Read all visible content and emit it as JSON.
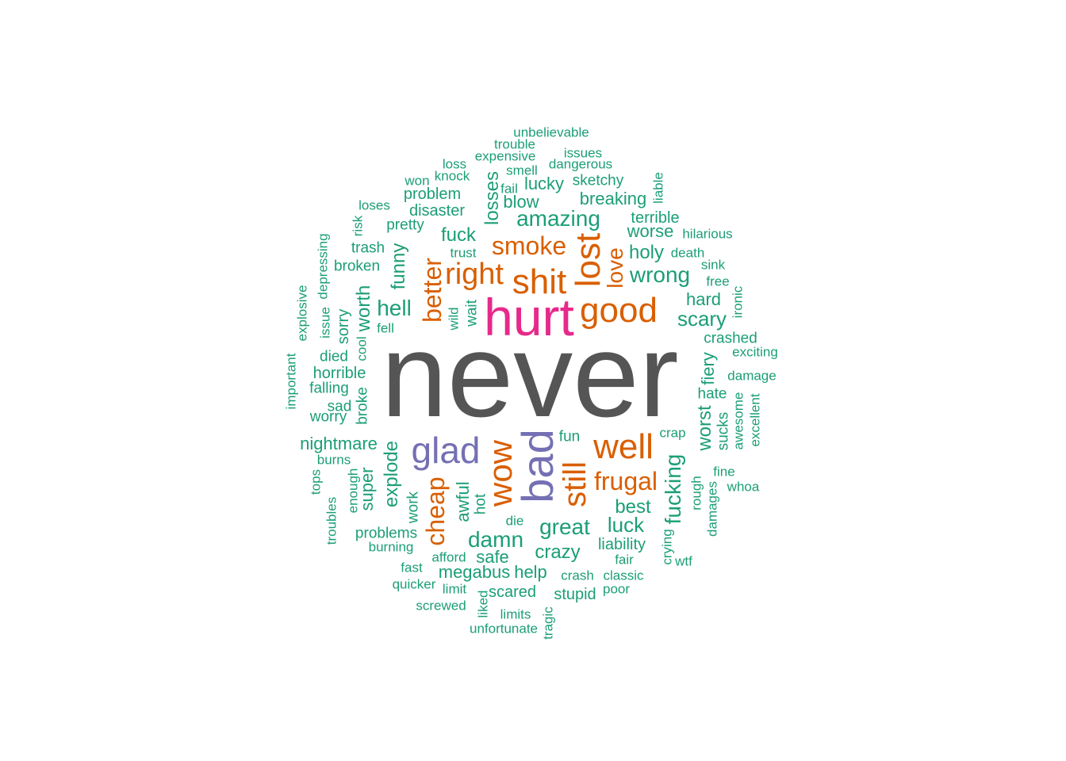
{
  "colors": {
    "green": "#1b9e77",
    "orange": "#d95f02",
    "purple": "#7570b3",
    "magenta": "#e7298a",
    "gray": "#555555"
  },
  "words": [
    {
      "text": "never",
      "color": "gray"
    },
    {
      "text": "hurt",
      "color": "magenta"
    },
    {
      "text": "bad",
      "color": "purple"
    },
    {
      "text": "glad",
      "color": "purple"
    },
    {
      "text": "shit",
      "color": "orange"
    },
    {
      "text": "good",
      "color": "orange"
    },
    {
      "text": "lost",
      "color": "orange"
    },
    {
      "text": "right",
      "color": "orange"
    },
    {
      "text": "well",
      "color": "orange"
    },
    {
      "text": "wow",
      "color": "orange"
    },
    {
      "text": "still",
      "color": "orange"
    },
    {
      "text": "smoke",
      "color": "orange"
    },
    {
      "text": "better",
      "color": "orange"
    },
    {
      "text": "cheap",
      "color": "orange"
    },
    {
      "text": "frugal",
      "color": "orange"
    },
    {
      "text": "love",
      "color": "orange"
    },
    {
      "text": "unbelievable",
      "color": "green"
    },
    {
      "text": "trouble",
      "color": "green"
    },
    {
      "text": "issues",
      "color": "green"
    },
    {
      "text": "expensive",
      "color": "green"
    },
    {
      "text": "dangerous",
      "color": "green"
    },
    {
      "text": "loss",
      "color": "green"
    },
    {
      "text": "smell",
      "color": "green"
    },
    {
      "text": "sketchy",
      "color": "green"
    },
    {
      "text": "won",
      "color": "green"
    },
    {
      "text": "knock",
      "color": "green"
    },
    {
      "text": "lucky",
      "color": "green"
    },
    {
      "text": "fail",
      "color": "green"
    },
    {
      "text": "liable",
      "color": "green"
    },
    {
      "text": "problem",
      "color": "green"
    },
    {
      "text": "losses",
      "color": "green"
    },
    {
      "text": "blow",
      "color": "green"
    },
    {
      "text": "breaking",
      "color": "green"
    },
    {
      "text": "loses",
      "color": "green"
    },
    {
      "text": "disaster",
      "color": "green"
    },
    {
      "text": "amazing",
      "color": "green"
    },
    {
      "text": "terrible",
      "color": "green"
    },
    {
      "text": "risk",
      "color": "green"
    },
    {
      "text": "pretty",
      "color": "green"
    },
    {
      "text": "worse",
      "color": "green"
    },
    {
      "text": "hilarious",
      "color": "green"
    },
    {
      "text": "fuck",
      "color": "green"
    },
    {
      "text": "trash",
      "color": "green"
    },
    {
      "text": "trust",
      "color": "green"
    },
    {
      "text": "holy",
      "color": "green"
    },
    {
      "text": "death",
      "color": "green"
    },
    {
      "text": "broken",
      "color": "green"
    },
    {
      "text": "depressing",
      "color": "green"
    },
    {
      "text": "funny",
      "color": "green"
    },
    {
      "text": "sink",
      "color": "green"
    },
    {
      "text": "wrong",
      "color": "green"
    },
    {
      "text": "free",
      "color": "green"
    },
    {
      "text": "explosive",
      "color": "green"
    },
    {
      "text": "hard",
      "color": "green"
    },
    {
      "text": "ironic",
      "color": "green"
    },
    {
      "text": "hell",
      "color": "green"
    },
    {
      "text": "worth",
      "color": "green"
    },
    {
      "text": "issue",
      "color": "green"
    },
    {
      "text": "sorry",
      "color": "green"
    },
    {
      "text": "wild",
      "color": "green"
    },
    {
      "text": "wait",
      "color": "green"
    },
    {
      "text": "scary",
      "color": "green"
    },
    {
      "text": "fell",
      "color": "green"
    },
    {
      "text": "crashed",
      "color": "green"
    },
    {
      "text": "cool",
      "color": "green"
    },
    {
      "text": "died",
      "color": "green"
    },
    {
      "text": "exciting",
      "color": "green"
    },
    {
      "text": "important",
      "color": "green"
    },
    {
      "text": "horrible",
      "color": "green"
    },
    {
      "text": "damage",
      "color": "green"
    },
    {
      "text": "fiery",
      "color": "green"
    },
    {
      "text": "falling",
      "color": "green"
    },
    {
      "text": "broke",
      "color": "green"
    },
    {
      "text": "hate",
      "color": "green"
    },
    {
      "text": "sad",
      "color": "green"
    },
    {
      "text": "awesome",
      "color": "green"
    },
    {
      "text": "excellent",
      "color": "green"
    },
    {
      "text": "worry",
      "color": "green"
    },
    {
      "text": "worst",
      "color": "green"
    },
    {
      "text": "sucks",
      "color": "green"
    },
    {
      "text": "crap",
      "color": "green"
    },
    {
      "text": "fun",
      "color": "green"
    },
    {
      "text": "nightmare",
      "color": "green"
    },
    {
      "text": "explode",
      "color": "green"
    },
    {
      "text": "burns",
      "color": "green"
    },
    {
      "text": "fucking",
      "color": "green"
    },
    {
      "text": "fine",
      "color": "green"
    },
    {
      "text": "tops",
      "color": "green"
    },
    {
      "text": "enough",
      "color": "green"
    },
    {
      "text": "super",
      "color": "green"
    },
    {
      "text": "whoa",
      "color": "green"
    },
    {
      "text": "rough",
      "color": "green"
    },
    {
      "text": "work",
      "color": "green"
    },
    {
      "text": "awful",
      "color": "green"
    },
    {
      "text": "hot",
      "color": "green"
    },
    {
      "text": "best",
      "color": "green"
    },
    {
      "text": "damages",
      "color": "green"
    },
    {
      "text": "troubles",
      "color": "green"
    },
    {
      "text": "die",
      "color": "green"
    },
    {
      "text": "great",
      "color": "green"
    },
    {
      "text": "luck",
      "color": "green"
    },
    {
      "text": "problems",
      "color": "green"
    },
    {
      "text": "damn",
      "color": "green"
    },
    {
      "text": "burning",
      "color": "green"
    },
    {
      "text": "crazy",
      "color": "green"
    },
    {
      "text": "liability",
      "color": "green"
    },
    {
      "text": "crying",
      "color": "green"
    },
    {
      "text": "afford",
      "color": "green"
    },
    {
      "text": "safe",
      "color": "green"
    },
    {
      "text": "fair",
      "color": "green"
    },
    {
      "text": "wtf",
      "color": "green"
    },
    {
      "text": "fast",
      "color": "green"
    },
    {
      "text": "megabus",
      "color": "green"
    },
    {
      "text": "help",
      "color": "green"
    },
    {
      "text": "crash",
      "color": "green"
    },
    {
      "text": "classic",
      "color": "green"
    },
    {
      "text": "quicker",
      "color": "green"
    },
    {
      "text": "limit",
      "color": "green"
    },
    {
      "text": "scared",
      "color": "green"
    },
    {
      "text": "stupid",
      "color": "green"
    },
    {
      "text": "poor",
      "color": "green"
    },
    {
      "text": "liked",
      "color": "green"
    },
    {
      "text": "screwed",
      "color": "green"
    },
    {
      "text": "limits",
      "color": "green"
    },
    {
      "text": "tragic",
      "color": "green"
    },
    {
      "text": "unfortunate",
      "color": "green"
    }
  ]
}
